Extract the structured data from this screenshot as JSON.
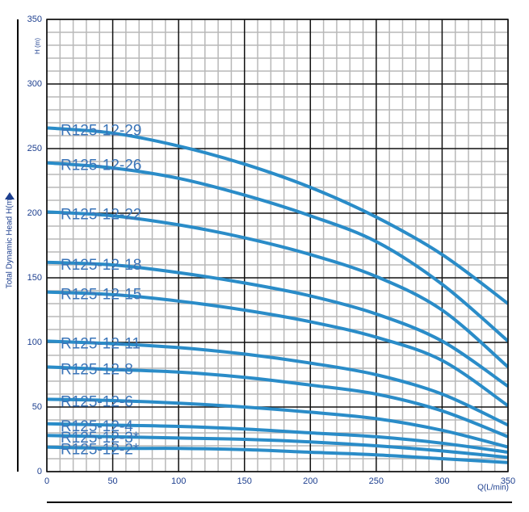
{
  "chart_data": {
    "type": "line",
    "y_label": "Total Dynamic Head H(m)",
    "y_unit": "H (m)",
    "x_label": "Q(L/min)",
    "x": [
      0,
      50,
      100,
      150,
      200,
      250,
      300,
      350
    ],
    "xlim": [
      0,
      350
    ],
    "ylim": [
      0,
      350
    ],
    "xticks": [
      0,
      50,
      100,
      150,
      200,
      250,
      300,
      350
    ],
    "yticks": [
      0,
      50,
      100,
      150,
      200,
      250,
      300,
      350
    ],
    "grid": true,
    "minor_grid": true,
    "series": [
      {
        "name": "R125-12-29",
        "color": "#2a8cc8",
        "values": [
          266,
          262,
          252,
          238,
          220,
          197,
          168,
          130
        ]
      },
      {
        "name": "R125-12-26",
        "color": "#2a8cc8",
        "values": [
          239,
          235,
          227,
          214,
          198,
          178,
          145,
          101
        ]
      },
      {
        "name": "R125-12-22",
        "color": "#2a8cc8",
        "values": [
          201,
          198,
          191,
          181,
          168,
          151,
          125,
          81
        ]
      },
      {
        "name": "R125-12-18",
        "color": "#2a8cc8",
        "values": [
          162,
          160,
          154,
          146,
          136,
          122,
          101,
          66
        ]
      },
      {
        "name": "R125-12-15",
        "color": "#2a8cc8",
        "values": [
          139,
          137,
          132,
          125,
          116,
          104,
          86,
          51
        ]
      },
      {
        "name": "R125-12-11",
        "color": "#2a8cc8",
        "values": [
          101,
          99,
          96,
          91,
          84,
          75,
          60,
          36
        ]
      },
      {
        "name": "R125-12-8",
        "color": "#2a8cc8",
        "values": [
          81,
          79,
          77,
          73,
          67,
          60,
          47,
          27
        ]
      },
      {
        "name": "R125-12-6",
        "color": "#2a8cc8",
        "values": [
          56,
          55,
          53,
          50,
          46,
          41,
          32,
          19
        ]
      },
      {
        "name": "R125-12-4",
        "color": "#2a8cc8",
        "values": [
          37,
          36,
          35,
          33,
          30,
          27,
          22,
          15
        ]
      },
      {
        "name": "R125-12-3*",
        "color": "#2a8cc8",
        "values": [
          28,
          27,
          26,
          25,
          23,
          20,
          16,
          11
        ]
      },
      {
        "name": "R125-12-2*",
        "color": "#2a8cc8",
        "values": [
          19,
          18,
          18,
          17,
          15,
          13,
          10,
          7
        ]
      }
    ]
  }
}
